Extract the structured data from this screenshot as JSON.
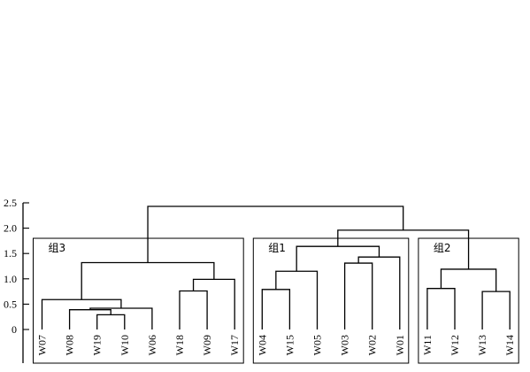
{
  "chart_data": {
    "type": "dendrogram",
    "ylim": [
      0,
      2.5
    ],
    "y_ticks": [
      {
        "value": 0,
        "label": "0"
      },
      {
        "value": 0.5,
        "label": "0.5"
      },
      {
        "value": 1.0,
        "label": "1.0"
      },
      {
        "value": 1.5,
        "label": "1.5"
      },
      {
        "value": 2.0,
        "label": "2.0"
      },
      {
        "value": 2.5,
        "label": "2.5"
      }
    ],
    "leaves": [
      "W07",
      "W08",
      "W19",
      "W10",
      "W06",
      "W18",
      "W09",
      "W17",
      "W04",
      "W15",
      "W05",
      "W03",
      "W02",
      "W01",
      "W11",
      "W12",
      "W13",
      "W14"
    ],
    "merges": [
      {
        "a": "W19",
        "b": "W10",
        "height": 0.29
      },
      {
        "a": "W08",
        "b": "W19+W10",
        "height": 0.39
      },
      {
        "a": "W08+W19+W10",
        "b": "W06",
        "height": 0.42
      },
      {
        "a": "W07",
        "b": "W08+W19+W10+W06",
        "height": 0.59
      },
      {
        "a": "W18",
        "b": "W09",
        "height": 0.76
      },
      {
        "a": "W18+W09",
        "b": "W17",
        "height": 0.99
      },
      {
        "a": "W07..W06",
        "b": "W18+W09+W17",
        "height": 1.32
      },
      {
        "a": "W04",
        "b": "W15",
        "height": 0.79
      },
      {
        "a": "W04+W15",
        "b": "W05",
        "height": 1.15
      },
      {
        "a": "W03",
        "b": "W02",
        "height": 1.31
      },
      {
        "a": "W03+W02",
        "b": "W01",
        "height": 1.43
      },
      {
        "a": "W04+W15+W05",
        "b": "W03+W02+W01",
        "height": 1.64
      },
      {
        "a": "W11",
        "b": "W12",
        "height": 0.81
      },
      {
        "a": "W13",
        "b": "W14",
        "height": 0.75
      },
      {
        "a": "W11+W12",
        "b": "W13+W14",
        "height": 1.19
      },
      {
        "a": "组1",
        "b": "组2",
        "height": 1.96
      },
      {
        "a": "组3",
        "b": "组1+组2",
        "height": 2.43
      }
    ],
    "groups": [
      {
        "label": "组3",
        "first_leaf": "W07",
        "last_leaf": "W17",
        "top": 1.8
      },
      {
        "label": "组1",
        "first_leaf": "W04",
        "last_leaf": "W01",
        "top": 1.8
      },
      {
        "label": "组2",
        "first_leaf": "W11",
        "last_leaf": "W14",
        "top": 1.8
      }
    ]
  }
}
